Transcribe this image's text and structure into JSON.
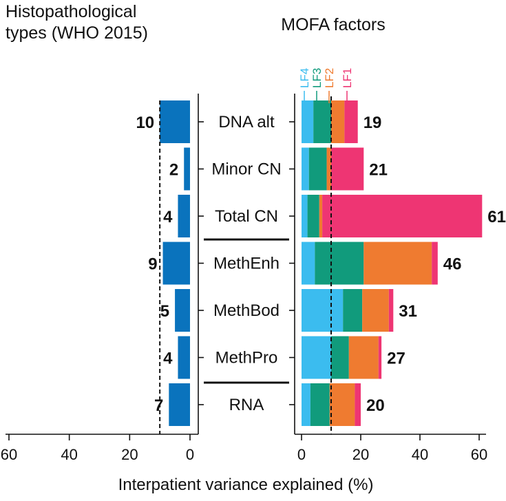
{
  "colors": {
    "LF4": "#3bbcef",
    "LF3": "#119b7c",
    "LF2": "#ef7b30",
    "LF1": "#ee3573",
    "hist": "#0a73bd",
    "axis": "#111111"
  },
  "chart_data": [
    {
      "type": "bar",
      "panel": "left",
      "title_lines": [
        "Histopathological",
        "types (WHO 2015)"
      ],
      "categories": [
        "DNA alt",
        "Minor CN",
        "Total CN",
        "MethEnh",
        "MethBod",
        "MethPro",
        "RNA"
      ],
      "values": [
        10,
        2,
        4,
        9,
        5,
        4,
        7
      ],
      "value_labels": [
        "10",
        "2",
        "4",
        "9",
        "5",
        "4",
        "7"
      ],
      "xlim": [
        60,
        0
      ],
      "xticks": [
        "60",
        "40",
        "20",
        "0"
      ],
      "reference_line": 10
    },
    {
      "type": "bar",
      "stacked": true,
      "panel": "right",
      "title": "MOFA factors",
      "categories": [
        "DNA alt",
        "Minor CN",
        "Total CN",
        "MethEnh",
        "MethBod",
        "MethPro",
        "RNA"
      ],
      "legend": [
        "LF4",
        "LF3",
        "LF2",
        "LF1"
      ],
      "series": [
        {
          "name": "LF4",
          "values": [
            4,
            2.5,
            2,
            4.5,
            14,
            10,
            3
          ]
        },
        {
          "name": "LF3",
          "values": [
            6,
            6,
            4,
            16.5,
            6.5,
            6,
            6.5
          ]
        },
        {
          "name": "LF2",
          "values": [
            4.5,
            1.5,
            1,
            23,
            9,
            10,
            8.5
          ]
        },
        {
          "name": "LF1",
          "values": [
            4.5,
            11,
            54,
            2,
            1.5,
            1,
            2
          ]
        }
      ],
      "totals": [
        "19",
        "21",
        "61",
        "46",
        "31",
        "27",
        "20"
      ],
      "xlim": [
        0,
        60
      ],
      "xticks": [
        "0",
        "20",
        "40",
        "60"
      ],
      "reference_line": 10
    }
  ],
  "xlabel": "Interpatient variance explained (%)"
}
